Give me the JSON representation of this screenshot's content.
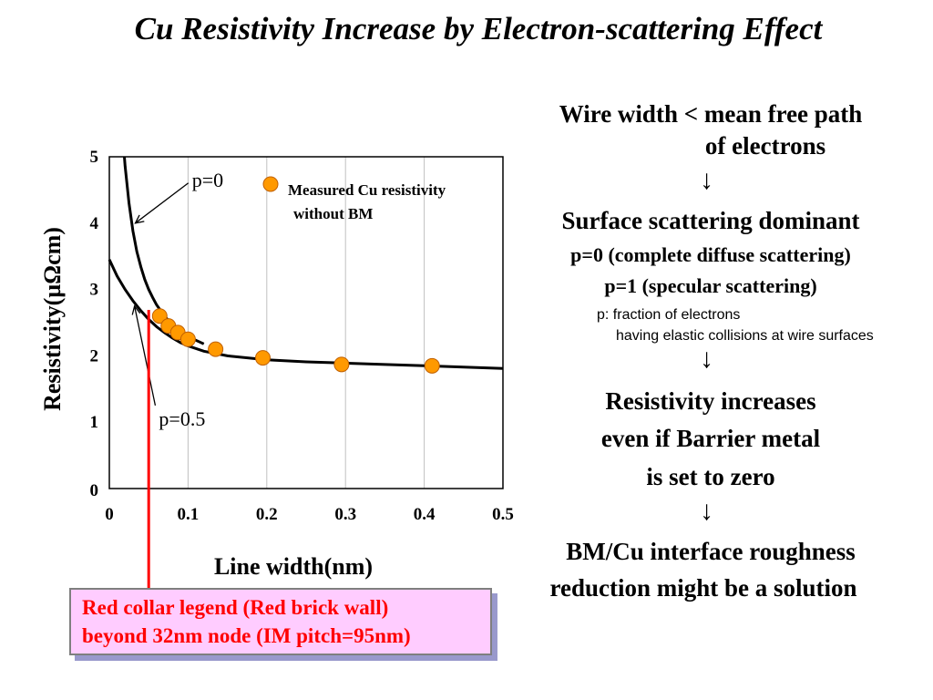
{
  "title": "Cu Resistivity Increase by Electron-scattering Effect",
  "chart_data": {
    "type": "scatter",
    "xlabel": "Line width(nm)",
    "ylabel": "Resistivity(µΩcm)",
    "xlim": [
      0,
      0.5
    ],
    "ylim": [
      0,
      5
    ],
    "x_ticks": [
      "0",
      "0.1",
      "0.2",
      "0.3",
      "0.4",
      "0.5"
    ],
    "y_ticks": [
      "0",
      "1",
      "2",
      "3",
      "4",
      "5"
    ],
    "grid": "vertical",
    "series": [
      {
        "name": "Measured Cu resistivity without BM",
        "kind": "points",
        "color": "#ff9900",
        "x": [
          0.064,
          0.075,
          0.087,
          0.1,
          0.135,
          0.195,
          0.295,
          0.41
        ],
        "y": [
          2.6,
          2.45,
          2.35,
          2.25,
          2.1,
          1.97,
          1.87,
          1.85
        ]
      },
      {
        "name": "p=0",
        "kind": "curve",
        "color": "#000000",
        "x": [
          0.017,
          0.02,
          0.025,
          0.03,
          0.035,
          0.04,
          0.045,
          0.05,
          0.055,
          0.06,
          0.07,
          0.08,
          0.09,
          0.1,
          0.12
        ],
        "y": [
          5.3,
          4.86,
          4.3,
          3.88,
          3.57,
          3.34,
          3.15,
          3.0,
          2.88,
          2.77,
          2.6,
          2.47,
          2.37,
          2.29,
          2.18
        ]
      },
      {
        "name": "p=0.5",
        "kind": "curve",
        "color": "#000000",
        "x": [
          0.0,
          0.01,
          0.02,
          0.03,
          0.04,
          0.05,
          0.06,
          0.07,
          0.08,
          0.09,
          0.1,
          0.12,
          0.15,
          0.2,
          0.25,
          0.3,
          0.35,
          0.4,
          0.45,
          0.5
        ],
        "y": [
          3.45,
          3.2,
          3.0,
          2.83,
          2.68,
          2.55,
          2.44,
          2.35,
          2.27,
          2.2,
          2.15,
          2.07,
          2.0,
          1.94,
          1.91,
          1.89,
          1.87,
          1.85,
          1.83,
          1.81
        ]
      }
    ],
    "annotations": [
      {
        "text": "p=0",
        "x": 0.105,
        "y": 4.55,
        "arrow_to_x": 0.033,
        "arrow_to_y": 4.0
      },
      {
        "text": "p=0.5",
        "x": 0.063,
        "y": 0.95,
        "arrow_to_x": 0.032,
        "arrow_to_y": 2.75
      }
    ],
    "legend": {
      "text_1": "Measured Cu resistivity",
      "text_2": "without BM",
      "position": "top-right"
    },
    "red_marker": {
      "x": 0.05,
      "color": "#ff0000"
    }
  },
  "right_panel": {
    "line1a": "Wire width < mean free path",
    "line1b": "of electrons",
    "arrow": "↓",
    "line2": "Surface scattering dominant",
    "p0_bold": "p=0",
    "p0_rest": " (complete diffuse scattering)",
    "p1_bold": "p=1",
    "p1_rest": " (specular scattering)",
    "note1": "p: fraction of electrons",
    "note2": "having elastic collisions at wire surfaces",
    "line3a": "Resistivity increases",
    "line3b": "even if Barrier metal",
    "line3c": "is set to zero",
    "line4a": "BM/Cu interface roughness",
    "line4b": "reduction might be a solution"
  },
  "legend_box": {
    "line1": "Red collar legend (Red brick wall)",
    "line2": "beyond 32nm node (IM pitch=95nm)"
  }
}
